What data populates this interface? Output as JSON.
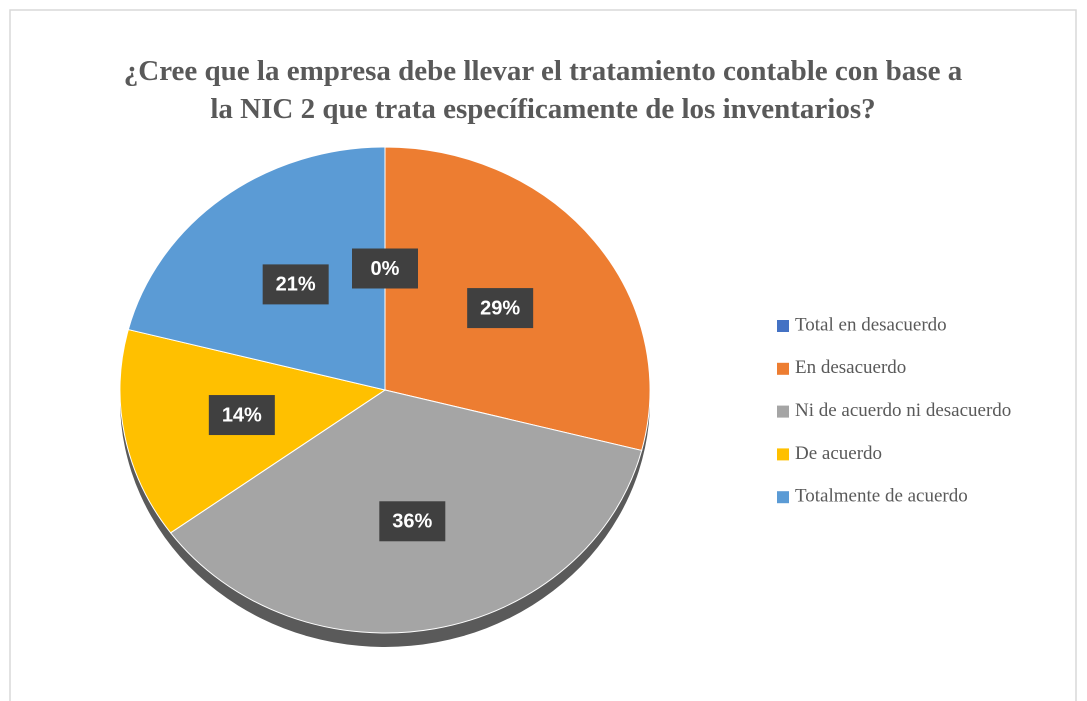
{
  "chart_data": {
    "type": "pie",
    "title": "¿Cree que la empresa debe llevar el tratamiento contable con base a la NIC 2 que trata específicamente de los inventarios?",
    "categories": [
      "Total en desacuerdo",
      "En desacuerdo",
      "Ni de acuerdo ni desacuerdo",
      "De acuerdo",
      "Totalmente de acuerdo"
    ],
    "values": [
      0,
      29,
      36,
      14,
      21
    ],
    "value_labels": [
      "0%",
      "29%",
      "36%",
      "14%",
      "21%"
    ],
    "colors": [
      "#4472c4",
      "#ed7d31",
      "#a5a5a5",
      "#ffc000",
      "#5b9bd5"
    ],
    "legend": "right"
  }
}
